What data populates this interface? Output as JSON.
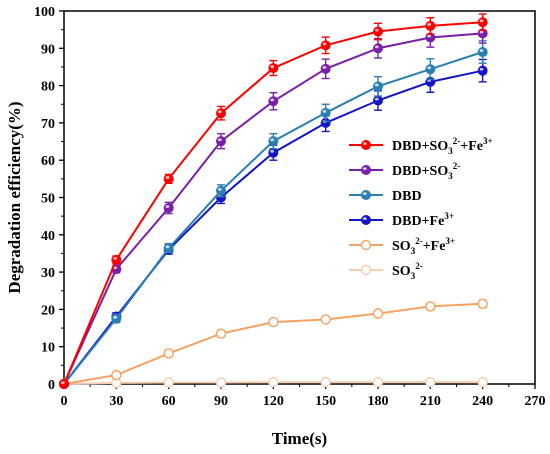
{
  "chart_data": {
    "type": "line",
    "xlabel": "Time(s)",
    "ylabel": "Degradation efficiency(%)",
    "xlim": [
      0,
      270
    ],
    "ylim": [
      0,
      100
    ],
    "xticks": [
      0,
      30,
      60,
      90,
      120,
      150,
      180,
      210,
      240,
      270
    ],
    "yticks": [
      0,
      10,
      20,
      30,
      40,
      50,
      60,
      70,
      80,
      90,
      100
    ],
    "grid": false,
    "legend_position": "right",
    "x": [
      0,
      30,
      60,
      90,
      120,
      150,
      180,
      210,
      240
    ],
    "series": [
      {
        "name": "DBD+SO3 2-+Fe 3+",
        "label_parts": [
          [
            "DBD+SO",
            ""
          ],
          [
            "3",
            "sub"
          ],
          [
            "2-",
            "sup"
          ],
          [
            "+Fe",
            ""
          ],
          [
            "3+",
            "sup"
          ]
        ],
        "color": "#ff0000",
        "marker": "filled",
        "values": [
          0,
          33.3,
          55.0,
          72.6,
          84.7,
          90.8,
          94.5,
          96.0,
          97.0
        ],
        "errors": [
          0,
          1.0,
          1.2,
          1.8,
          2.0,
          2.2,
          2.2,
          2.2,
          2.2
        ]
      },
      {
        "name": "DBD+SO3 2-",
        "label_parts": [
          [
            "DBD+SO",
            ""
          ],
          [
            "3",
            "sub"
          ],
          [
            "2-",
            "sup"
          ]
        ],
        "color": "#7a1fa8",
        "marker": "filled",
        "values": [
          0,
          30.8,
          47.2,
          65.1,
          75.8,
          84.5,
          90.0,
          92.9,
          94.0
        ],
        "errors": [
          0,
          1.0,
          1.5,
          2.0,
          2.3,
          2.6,
          2.6,
          2.6,
          2.6
        ]
      },
      {
        "name": "DBD",
        "label_parts": [
          [
            "DBD",
            ""
          ]
        ],
        "color": "#2a7fb0",
        "marker": "filled",
        "values": [
          0,
          17.5,
          36.4,
          51.8,
          65.1,
          72.7,
          79.8,
          84.4,
          89.0
        ],
        "errors": [
          0,
          1.0,
          1.2,
          1.6,
          2.0,
          2.3,
          2.6,
          2.8,
          3.0
        ]
      },
      {
        "name": "DBD+Fe 3+",
        "label_parts": [
          [
            "DBD+Fe",
            ""
          ],
          [
            "3+",
            "sup"
          ]
        ],
        "color": "#1515c8",
        "marker": "filled",
        "values": [
          0,
          18.1,
          36.0,
          50.0,
          62.0,
          70.0,
          76.0,
          81.0,
          84.0
        ],
        "errors": [
          0,
          1.0,
          1.2,
          1.6,
          2.0,
          2.3,
          2.6,
          2.8,
          3.0
        ]
      },
      {
        "name": "SO3 2-+Fe 3+",
        "label_parts": [
          [
            "SO",
            ""
          ],
          [
            "3",
            "sub"
          ],
          [
            "2-",
            "sup"
          ],
          [
            "+Fe",
            ""
          ],
          [
            "3+",
            "sup"
          ]
        ],
        "color": "#f5a263",
        "marker": "open",
        "values": [
          0,
          2.4,
          8.2,
          13.5,
          16.6,
          17.3,
          18.9,
          20.8,
          21.5
        ],
        "errors": [
          0,
          0.8,
          0.9,
          0.9,
          0.8,
          0.8,
          0.8,
          0.9,
          1.0
        ]
      },
      {
        "name": "SO3 2-",
        "label_parts": [
          [
            "SO",
            ""
          ],
          [
            "3",
            "sub"
          ],
          [
            "2-",
            "sup"
          ]
        ],
        "color": "#f7cdb0",
        "marker": "open",
        "values": [
          0,
          0.3,
          0.4,
          0.4,
          0.5,
          0.5,
          0.5,
          0.5,
          0.5
        ],
        "errors": [
          0,
          0.2,
          0.2,
          0.2,
          0.2,
          0.2,
          0.2,
          0.2,
          0.2
        ]
      }
    ]
  }
}
